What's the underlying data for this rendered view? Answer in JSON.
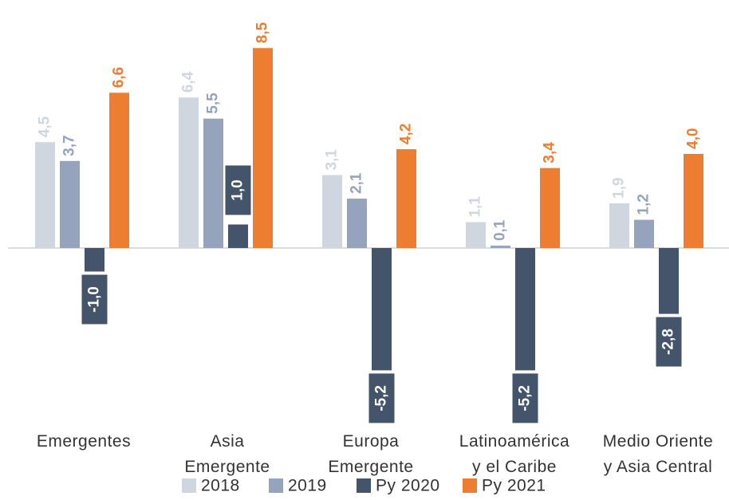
{
  "chart_data": {
    "type": "bar",
    "categories": [
      "Emergentes",
      "Asia\nEmergente",
      "Europa\nEmergente",
      "Latinoamérica\ny el Caribe",
      "Medio Oriente\ny Asia Central"
    ],
    "series": [
      {
        "name": "2018",
        "color": "#cfd6e0",
        "values": [
          4.5,
          6.4,
          3.1,
          1.1,
          1.9
        ],
        "value_labels": [
          "4,5",
          "6,4",
          "3,1",
          "1,1",
          "1,9"
        ]
      },
      {
        "name": "2019",
        "color": "#96a3bc",
        "values": [
          3.7,
          5.5,
          2.1,
          0.1,
          1.2
        ],
        "value_labels": [
          "3,7",
          "5,5",
          "2,1",
          "0,1",
          "1,2"
        ]
      },
      {
        "name": "Py 2020",
        "color": "#44546a",
        "values": [
          -1.0,
          1.0,
          -5.2,
          -5.2,
          -2.8
        ],
        "value_labels": [
          "-1,0",
          "1,0",
          "-5,2",
          "-5,2",
          "-2,8"
        ]
      },
      {
        "name": "Py 2021",
        "color": "#ed7d31",
        "values": [
          6.6,
          8.5,
          4.2,
          3.4,
          4.0
        ],
        "value_labels": [
          "6,6",
          "8,5",
          "4,2",
          "3,4",
          "4,0"
        ]
      }
    ],
    "legend": "bottom"
  }
}
